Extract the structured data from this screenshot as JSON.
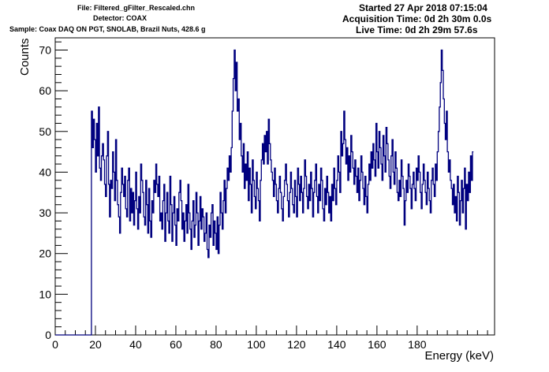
{
  "header": {
    "file": "File: Filtered_gFilter_Rescaled.chn",
    "detector": "Detector: COAX",
    "sample": "Sample: Coax DAQ ON PGT, SNOLAB, Brazil Nuts, 428.6 g",
    "started": "Started 27 Apr 2018 07:15:04",
    "acquisition": "Acquisition Time: 0d 2h 30m 0.0s",
    "live": "Live Time: 0d 2h 29m 57.6s"
  },
  "chart_data": {
    "type": "line",
    "xlabel": "Energy (keV)",
    "ylabel": "Counts",
    "xlim": [
      0,
      218.5
    ],
    "ylim": [
      0,
      73
    ],
    "x_ticks": [
      0,
      20,
      40,
      60,
      80,
      100,
      120,
      140,
      160,
      180
    ],
    "y_ticks": [
      0,
      10,
      20,
      30,
      40,
      50,
      60,
      70
    ],
    "grid": false,
    "line_color": "#00007f",
    "bin_width": 0.5,
    "x_start": 18,
    "values": [
      55,
      46,
      53,
      48,
      40,
      52,
      44,
      56,
      41,
      38,
      44,
      47,
      43,
      37,
      34,
      44,
      50,
      37,
      29,
      38,
      36,
      45,
      40,
      33,
      48,
      38,
      32,
      29,
      25,
      35,
      41,
      37,
      34,
      39,
      31,
      29,
      38,
      41,
      28,
      36,
      30,
      35,
      27,
      33,
      40,
      31,
      26,
      34,
      30,
      42,
      38,
      35,
      29,
      27,
      38,
      32,
      25,
      36,
      28,
      24,
      33,
      30,
      38,
      35,
      42,
      37,
      34,
      39,
      28,
      30,
      26,
      33,
      37,
      23,
      30,
      35,
      28,
      25,
      39,
      32,
      23,
      30,
      34,
      27,
      22,
      31,
      28,
      35,
      38,
      33,
      26,
      30,
      23,
      28,
      32,
      25,
      37,
      30,
      26,
      21,
      28,
      33,
      24,
      27,
      35,
      30,
      22,
      28,
      34,
      26,
      31,
      29,
      23,
      25,
      30,
      21,
      19,
      27,
      24,
      30,
      32,
      22,
      28,
      25,
      21,
      29,
      20,
      27,
      35,
      30,
      26,
      33,
      38,
      30,
      36,
      41,
      38,
      44,
      40,
      46,
      55,
      63,
      70,
      60,
      67,
      55,
      58,
      48,
      52,
      44,
      40,
      47,
      36,
      42,
      38,
      45,
      33,
      41,
      37,
      30,
      43,
      38,
      34,
      31,
      40,
      36,
      33,
      28,
      38,
      43,
      47,
      42,
      49,
      45,
      50,
      42,
      53,
      47,
      43,
      40,
      38,
      34,
      41,
      37,
      33,
      30,
      36,
      39,
      35,
      31,
      28,
      34,
      38,
      42,
      37,
      33,
      29,
      35,
      40,
      36,
      32,
      30,
      38,
      34,
      29,
      41,
      37,
      33,
      39,
      35,
      30,
      36,
      43,
      39,
      34,
      31,
      37,
      33,
      40,
      36,
      29,
      35,
      38,
      42,
      34,
      30,
      37,
      33,
      41,
      38,
      31,
      28,
      36,
      32,
      39,
      35,
      30,
      34,
      28,
      37,
      33,
      41,
      36,
      32,
      38,
      44,
      40,
      35,
      50,
      44,
      47,
      55,
      48,
      42,
      46,
      38,
      44,
      40,
      49,
      45,
      41,
      37,
      43,
      39,
      35,
      41,
      33,
      38,
      44,
      40,
      36,
      32,
      39,
      34,
      30,
      37,
      42,
      38,
      45,
      41,
      47,
      43,
      39,
      52,
      45,
      41,
      50,
      46,
      42,
      38,
      49,
      44,
      40,
      51,
      47,
      43,
      39,
      36,
      44,
      48,
      40,
      37,
      45,
      41,
      35,
      33,
      38,
      34,
      43,
      39,
      36,
      27,
      33,
      38,
      35,
      42,
      39,
      36,
      31,
      37,
      40,
      36,
      33,
      41,
      38,
      44,
      40,
      35,
      31,
      37,
      42,
      38,
      35,
      32,
      40,
      36,
      33,
      30,
      38,
      41,
      37,
      34,
      42,
      38,
      45,
      50,
      56,
      62,
      70,
      65,
      58,
      52,
      48,
      55,
      45,
      40,
      43,
      38,
      36,
      32,
      37,
      30,
      34,
      28,
      39,
      35,
      27,
      33,
      38,
      30,
      36,
      41,
      26,
      37,
      33,
      40,
      35,
      44,
      38,
      45
    ]
  }
}
